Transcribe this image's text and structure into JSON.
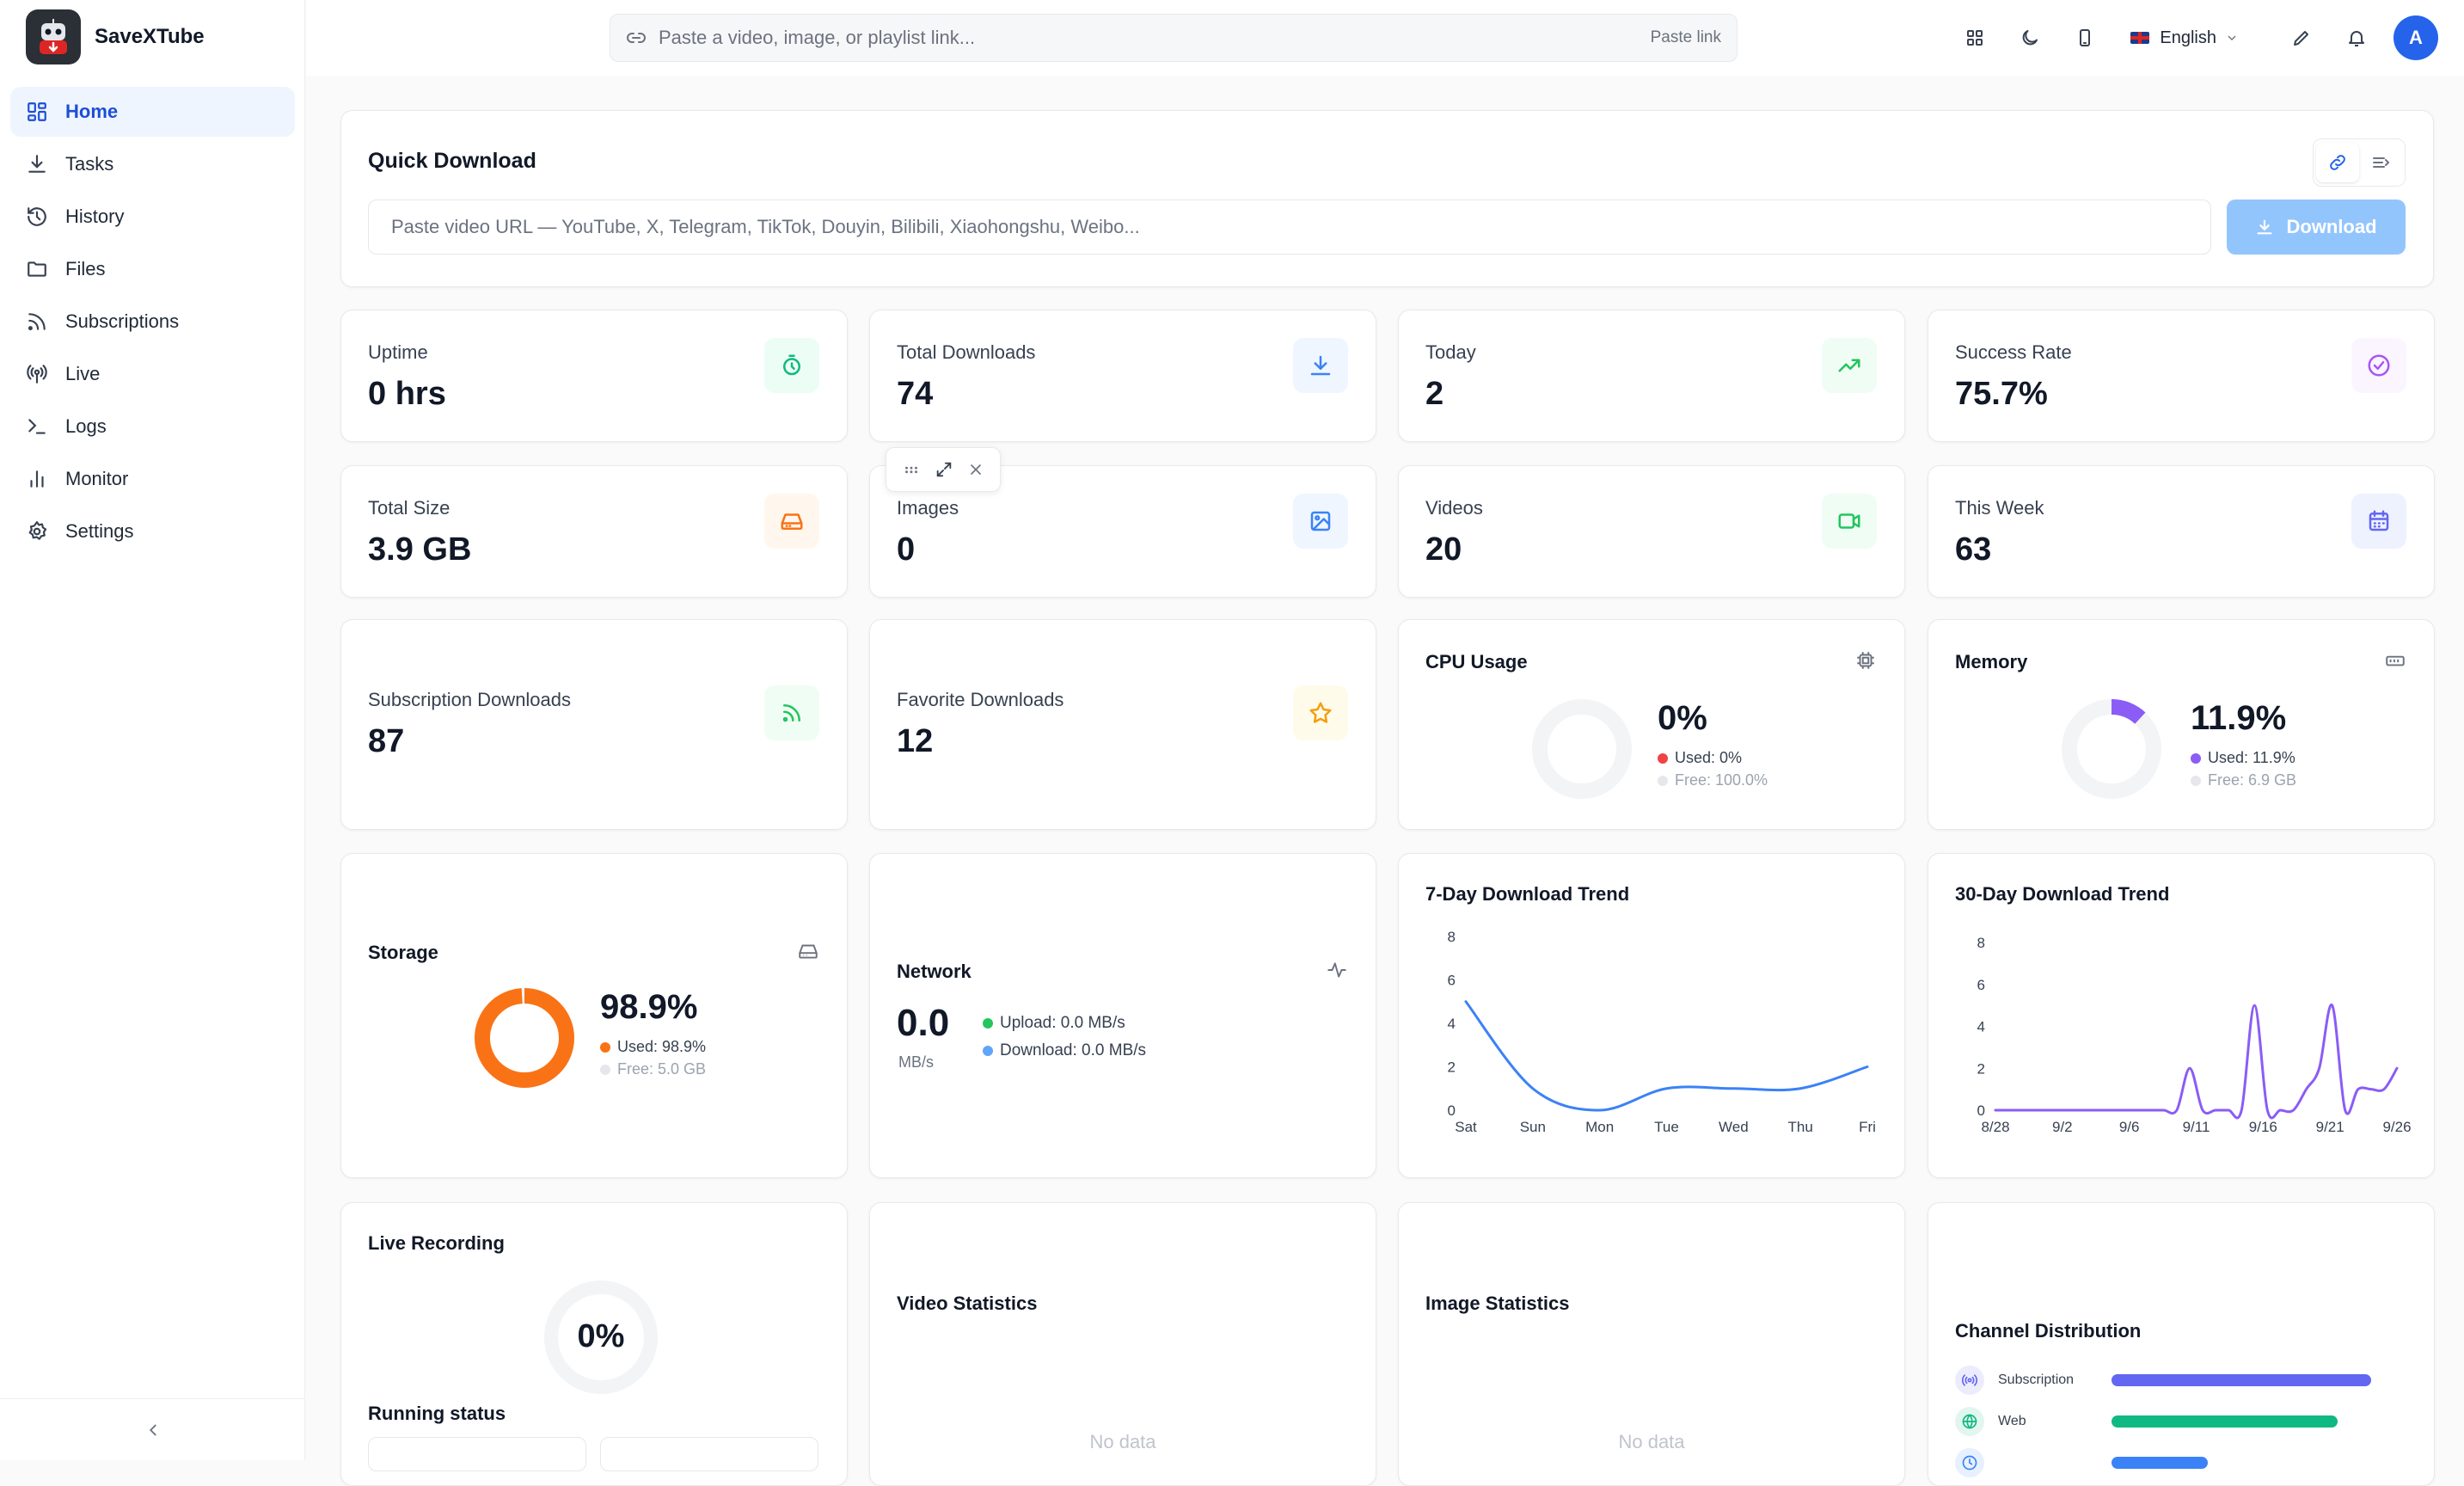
{
  "app": {
    "name": "SaveXTube"
  },
  "sidebar": {
    "items": [
      {
        "label": "Home",
        "icon": "grid-icon"
      },
      {
        "label": "Tasks",
        "icon": "download-icon"
      },
      {
        "label": "History",
        "icon": "history-icon"
      },
      {
        "label": "Files",
        "icon": "folder-icon"
      },
      {
        "label": "Subscriptions",
        "icon": "rss-icon"
      },
      {
        "label": "Live",
        "icon": "broadcast-icon"
      },
      {
        "label": "Logs",
        "icon": "terminal-icon"
      },
      {
        "label": "Monitor",
        "icon": "bar-chart-icon"
      },
      {
        "label": "Settings",
        "icon": "gear-icon"
      }
    ],
    "active": "Home"
  },
  "topbar": {
    "search_placeholder": "Paste a video, image, or playlist link...",
    "paste_label": "Paste link",
    "language": "English",
    "avatar_letter": "A"
  },
  "quick_download": {
    "title": "Quick Download",
    "placeholder": "Paste video URL — YouTube, X, Telegram, TikTok, Douyin, Bilibili, Xiaohongshu, Weibo...",
    "button": "Download"
  },
  "stats": [
    {
      "label": "Uptime",
      "value": "0 hrs",
      "icon": "stopwatch-icon",
      "color": "#10b981",
      "bg": "#ecfdf5"
    },
    {
      "label": "Total Downloads",
      "value": "74",
      "icon": "download-icon",
      "color": "#3b82f6",
      "bg": "#eff6ff"
    },
    {
      "label": "Today",
      "value": "2",
      "icon": "trending-up-icon",
      "color": "#22c55e",
      "bg": "#f0fdf4"
    },
    {
      "label": "Success Rate",
      "value": "75.7%",
      "icon": "check-circle-icon",
      "color": "#a855f7",
      "bg": "#faf5ff"
    },
    {
      "label": "Total Size",
      "value": "3.9 GB",
      "icon": "hard-drive-icon",
      "color": "#f97316",
      "bg": "#fff7ed"
    },
    {
      "label": "Images",
      "value": "0",
      "icon": "image-icon",
      "color": "#3b82f6",
      "bg": "#eff6ff"
    },
    {
      "label": "Videos",
      "value": "20",
      "icon": "video-icon",
      "color": "#22c55e",
      "bg": "#f0fdf4"
    },
    {
      "label": "This Week",
      "value": "63",
      "icon": "calendar-icon",
      "color": "#6366f1",
      "bg": "#eef2ff"
    },
    {
      "label": "Subscription Downloads",
      "value": "87",
      "icon": "rss-icon",
      "color": "#22c55e",
      "bg": "#f0fdf4"
    },
    {
      "label": "Favorite Downloads",
      "value": "12",
      "icon": "star-icon",
      "color": "#f59e0b",
      "bg": "#fffbeb"
    }
  ],
  "cpu": {
    "title": "CPU Usage",
    "percent": "0%",
    "used": "Used: 0%",
    "free": "Free: 100.0%",
    "used_fraction": 0,
    "color": "#ef4444"
  },
  "memory": {
    "title": "Memory",
    "percent": "11.9%",
    "used": "Used: 11.9%",
    "free": "Free: 6.9 GB",
    "used_fraction": 0.119,
    "color": "#8b5cf6"
  },
  "storage": {
    "title": "Storage",
    "percent": "98.9%",
    "used": "Used: 98.9%",
    "free": "Free: 5.0 GB",
    "used_fraction": 0.989,
    "color": "#f97316"
  },
  "network": {
    "title": "Network",
    "value": "0.0",
    "unit": "MB/s",
    "upload": "Upload: 0.0 MB/s",
    "download": "Download: 0.0 MB/s"
  },
  "trend7": {
    "title": "7-Day Download Trend",
    "chart_data": {
      "type": "line",
      "categories": [
        "Sat",
        "Sun",
        "Mon",
        "Tue",
        "Wed",
        "Thu",
        "Fri"
      ],
      "values": [
        5,
        1,
        0,
        1,
        1,
        1,
        2
      ],
      "ylim": [
        0,
        8
      ],
      "yticks": [
        0,
        2,
        4,
        6,
        8
      ],
      "color": "#3b82f6"
    }
  },
  "trend30": {
    "title": "30-Day Download Trend",
    "chart_data": {
      "type": "line",
      "x_labels": [
        "8/28",
        "9/2",
        "9/6",
        "9/11",
        "9/16",
        "9/21",
        "9/26"
      ],
      "values": [
        0,
        0,
        0,
        0,
        0,
        0,
        0,
        0,
        0,
        0,
        0,
        0,
        0,
        0,
        0,
        2,
        0,
        0,
        0,
        0,
        5,
        0,
        0,
        0,
        1,
        2,
        5,
        0,
        1,
        1,
        1,
        2
      ],
      "ylim": [
        0,
        8
      ],
      "yticks": [
        0,
        2,
        4,
        6,
        8
      ],
      "color": "#8b5cf6"
    }
  },
  "live": {
    "title": "Live Recording",
    "percent": "0%",
    "running_status": "Running status"
  },
  "video_stats": {
    "title": "Video Statistics",
    "empty": "No data"
  },
  "image_stats": {
    "title": "Image Statistics",
    "empty": "No data"
  },
  "channels": {
    "title": "Channel Distribution",
    "items": [
      {
        "label": "Subscription",
        "icon": "broadcast-icon",
        "color": "#6366f1",
        "share": 1.0
      },
      {
        "label": "Web",
        "icon": "globe-icon",
        "color": "#10b981",
        "share": 0.87
      },
      {
        "label": "",
        "icon": "clock-icon",
        "color": "#3b82f6",
        "share": 0.37
      }
    ]
  }
}
